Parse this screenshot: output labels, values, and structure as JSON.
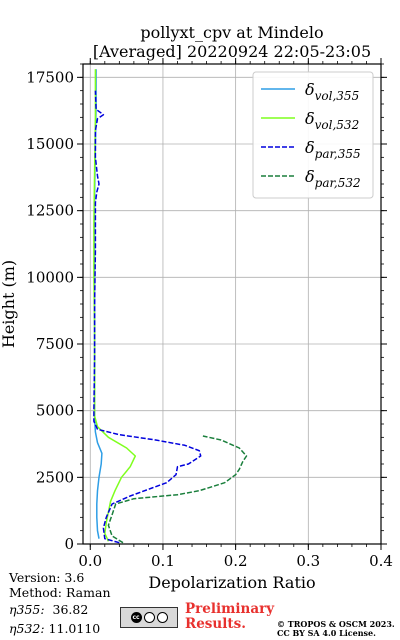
{
  "header": {
    "title": "pollyxt_cpv at Mindelo",
    "subtitle": "[Averaged] 20220924 22:05-23:05"
  },
  "chart_data": {
    "type": "line",
    "xlabel": "Depolarization Ratio",
    "ylabel": "Height (m)",
    "xlim": [
      -0.01,
      0.4
    ],
    "ylim": [
      0,
      18000
    ],
    "xticks": [
      0.0,
      0.1,
      0.2,
      0.3,
      0.4
    ],
    "xtick_labels": [
      "0.0",
      "0.1",
      "0.2",
      "0.3",
      "0.4"
    ],
    "yticks": [
      0,
      2500,
      5000,
      7500,
      10000,
      12500,
      15000,
      17500
    ],
    "ytick_labels": [
      "0",
      "2500",
      "5000",
      "7500",
      "10000",
      "12500",
      "15000",
      "17500"
    ],
    "grid": true,
    "legend_position": "top-right",
    "series": [
      {
        "name": "δvol,355",
        "name_base": "δ",
        "name_sub": "vol,355",
        "color": "#2e9ee6",
        "dash": "solid",
        "points": [
          [
            0.012,
            200
          ],
          [
            0.01,
            500
          ],
          [
            0.009,
            1000
          ],
          [
            0.009,
            1500
          ],
          [
            0.01,
            2000
          ],
          [
            0.012,
            2500
          ],
          [
            0.015,
            3000
          ],
          [
            0.016,
            3400
          ],
          [
            0.01,
            3800
          ],
          [
            0.007,
            4200
          ],
          [
            0.006,
            4700
          ],
          [
            0.006,
            5500
          ],
          [
            0.006,
            7000
          ],
          [
            0.006,
            9000
          ],
          [
            0.006,
            11000
          ],
          [
            0.006,
            13000
          ],
          [
            0.007,
            15000
          ],
          [
            0.008,
            16500
          ],
          [
            0.008,
            17800
          ]
        ]
      },
      {
        "name": "δvol,532",
        "name_base": "δ",
        "name_sub": "vol,532",
        "color": "#7fff1e",
        "dash": "solid",
        "points": [
          [
            0.025,
            100
          ],
          [
            0.02,
            400
          ],
          [
            0.022,
            800
          ],
          [
            0.025,
            1200
          ],
          [
            0.028,
            1600
          ],
          [
            0.034,
            2000
          ],
          [
            0.043,
            2500
          ],
          [
            0.055,
            2900
          ],
          [
            0.062,
            3300
          ],
          [
            0.05,
            3600
          ],
          [
            0.025,
            4000
          ],
          [
            0.01,
            4400
          ],
          [
            0.006,
            4800
          ],
          [
            0.006,
            6000
          ],
          [
            0.006,
            8000
          ],
          [
            0.005,
            10000
          ],
          [
            0.005,
            12000
          ],
          [
            0.006,
            14000
          ],
          [
            0.007,
            16000
          ],
          [
            0.007,
            17800
          ]
        ]
      },
      {
        "name": "δpar,355",
        "name_base": "δ",
        "name_sub": "par,355",
        "color": "#0000dd",
        "dash": "dashed",
        "points": [
          [
            0.04,
            50
          ],
          [
            0.02,
            200
          ],
          [
            0.018,
            600
          ],
          [
            0.022,
            1000
          ],
          [
            0.03,
            1500
          ],
          [
            0.055,
            1800
          ],
          [
            0.085,
            2100
          ],
          [
            0.105,
            2300
          ],
          [
            0.118,
            2600
          ],
          [
            0.12,
            2900
          ],
          [
            0.135,
            3000
          ],
          [
            0.152,
            3300
          ],
          [
            0.15,
            3500
          ],
          [
            0.13,
            3700
          ],
          [
            0.09,
            3900
          ],
          [
            0.04,
            4100
          ],
          [
            0.01,
            4300
          ],
          [
            0.005,
            4600
          ],
          [
            0.005,
            5000
          ],
          [
            0.006,
            7000
          ],
          [
            0.006,
            9000
          ],
          [
            0.007,
            11000
          ],
          [
            0.007,
            12800
          ],
          [
            0.009,
            13200
          ],
          [
            0.012,
            13500
          ],
          [
            0.01,
            13800
          ],
          [
            0.007,
            14500
          ],
          [
            0.007,
            15500
          ],
          [
            0.01,
            15950
          ],
          [
            0.018,
            16100
          ],
          [
            0.008,
            16300
          ],
          [
            0.007,
            17000
          ]
        ]
      },
      {
        "name": "δpar,532",
        "name_base": "δ",
        "name_sub": "par,532",
        "color": "#1a7f3c",
        "dash": "dashed",
        "points": [
          [
            0.045,
            50
          ],
          [
            0.03,
            300
          ],
          [
            0.025,
            700
          ],
          [
            0.03,
            1100
          ],
          [
            0.035,
            1500
          ],
          [
            0.06,
            1700
          ],
          [
            0.12,
            1850
          ],
          [
            0.15,
            2000
          ],
          [
            0.185,
            2300
          ],
          [
            0.2,
            2600
          ],
          [
            0.205,
            2800
          ],
          [
            0.21,
            3100
          ],
          [
            0.215,
            3300
          ],
          [
            0.205,
            3600
          ],
          [
            0.18,
            3900
          ],
          [
            0.155,
            4050
          ]
        ]
      }
    ]
  },
  "footer": {
    "version": "Version: 3.6",
    "method": "Method: Raman",
    "eta355_label": "η355:",
    "eta355_value": "36.82",
    "eta532_label": "η532:",
    "eta532_value": "11.0110",
    "preliminary_line1": "Preliminary",
    "preliminary_line2": "Results.",
    "copyright_line1": "© TROPOS & OSCM 2023.",
    "copyright_line2": "CC BY SA 4.0 License.",
    "cc_glyph": "cc"
  }
}
